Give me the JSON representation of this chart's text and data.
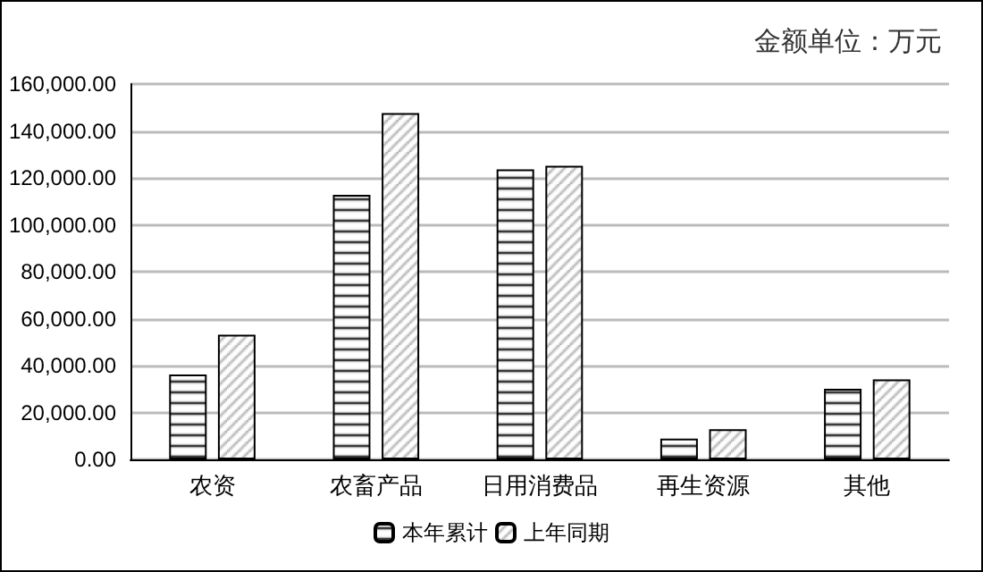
{
  "chart_data": {
    "type": "bar",
    "annotations": [
      "金额单位：万元"
    ],
    "categories": [
      "农资",
      "农畜产品",
      "日用消费品",
      "再生资源",
      "其他"
    ],
    "series": [
      {
        "name": "本年累计",
        "color": "#000000",
        "values": [
          36200,
          112800,
          123600,
          8900,
          30100
        ]
      },
      {
        "name": "上年同期",
        "color": "#000000",
        "values": [
          53100,
          147600,
          125100,
          12900,
          34100
        ]
      }
    ],
    "ylim": [
      0,
      160000
    ],
    "yticks": [
      {
        "value": 0,
        "label": "0.00"
      },
      {
        "value": 20000,
        "label": "20,000.00"
      },
      {
        "value": 40000,
        "label": "40,000.00"
      },
      {
        "value": 60000,
        "label": "60,000.00"
      },
      {
        "value": 80000,
        "label": "80,000.00"
      },
      {
        "value": 100000,
        "label": "100,000.00"
      },
      {
        "value": 120000,
        "label": "120,000.00"
      },
      {
        "value": 140000,
        "label": "140,000.00"
      },
      {
        "value": 160000,
        "label": "160,000.00"
      }
    ],
    "grid": "y",
    "legend": "bottom"
  }
}
